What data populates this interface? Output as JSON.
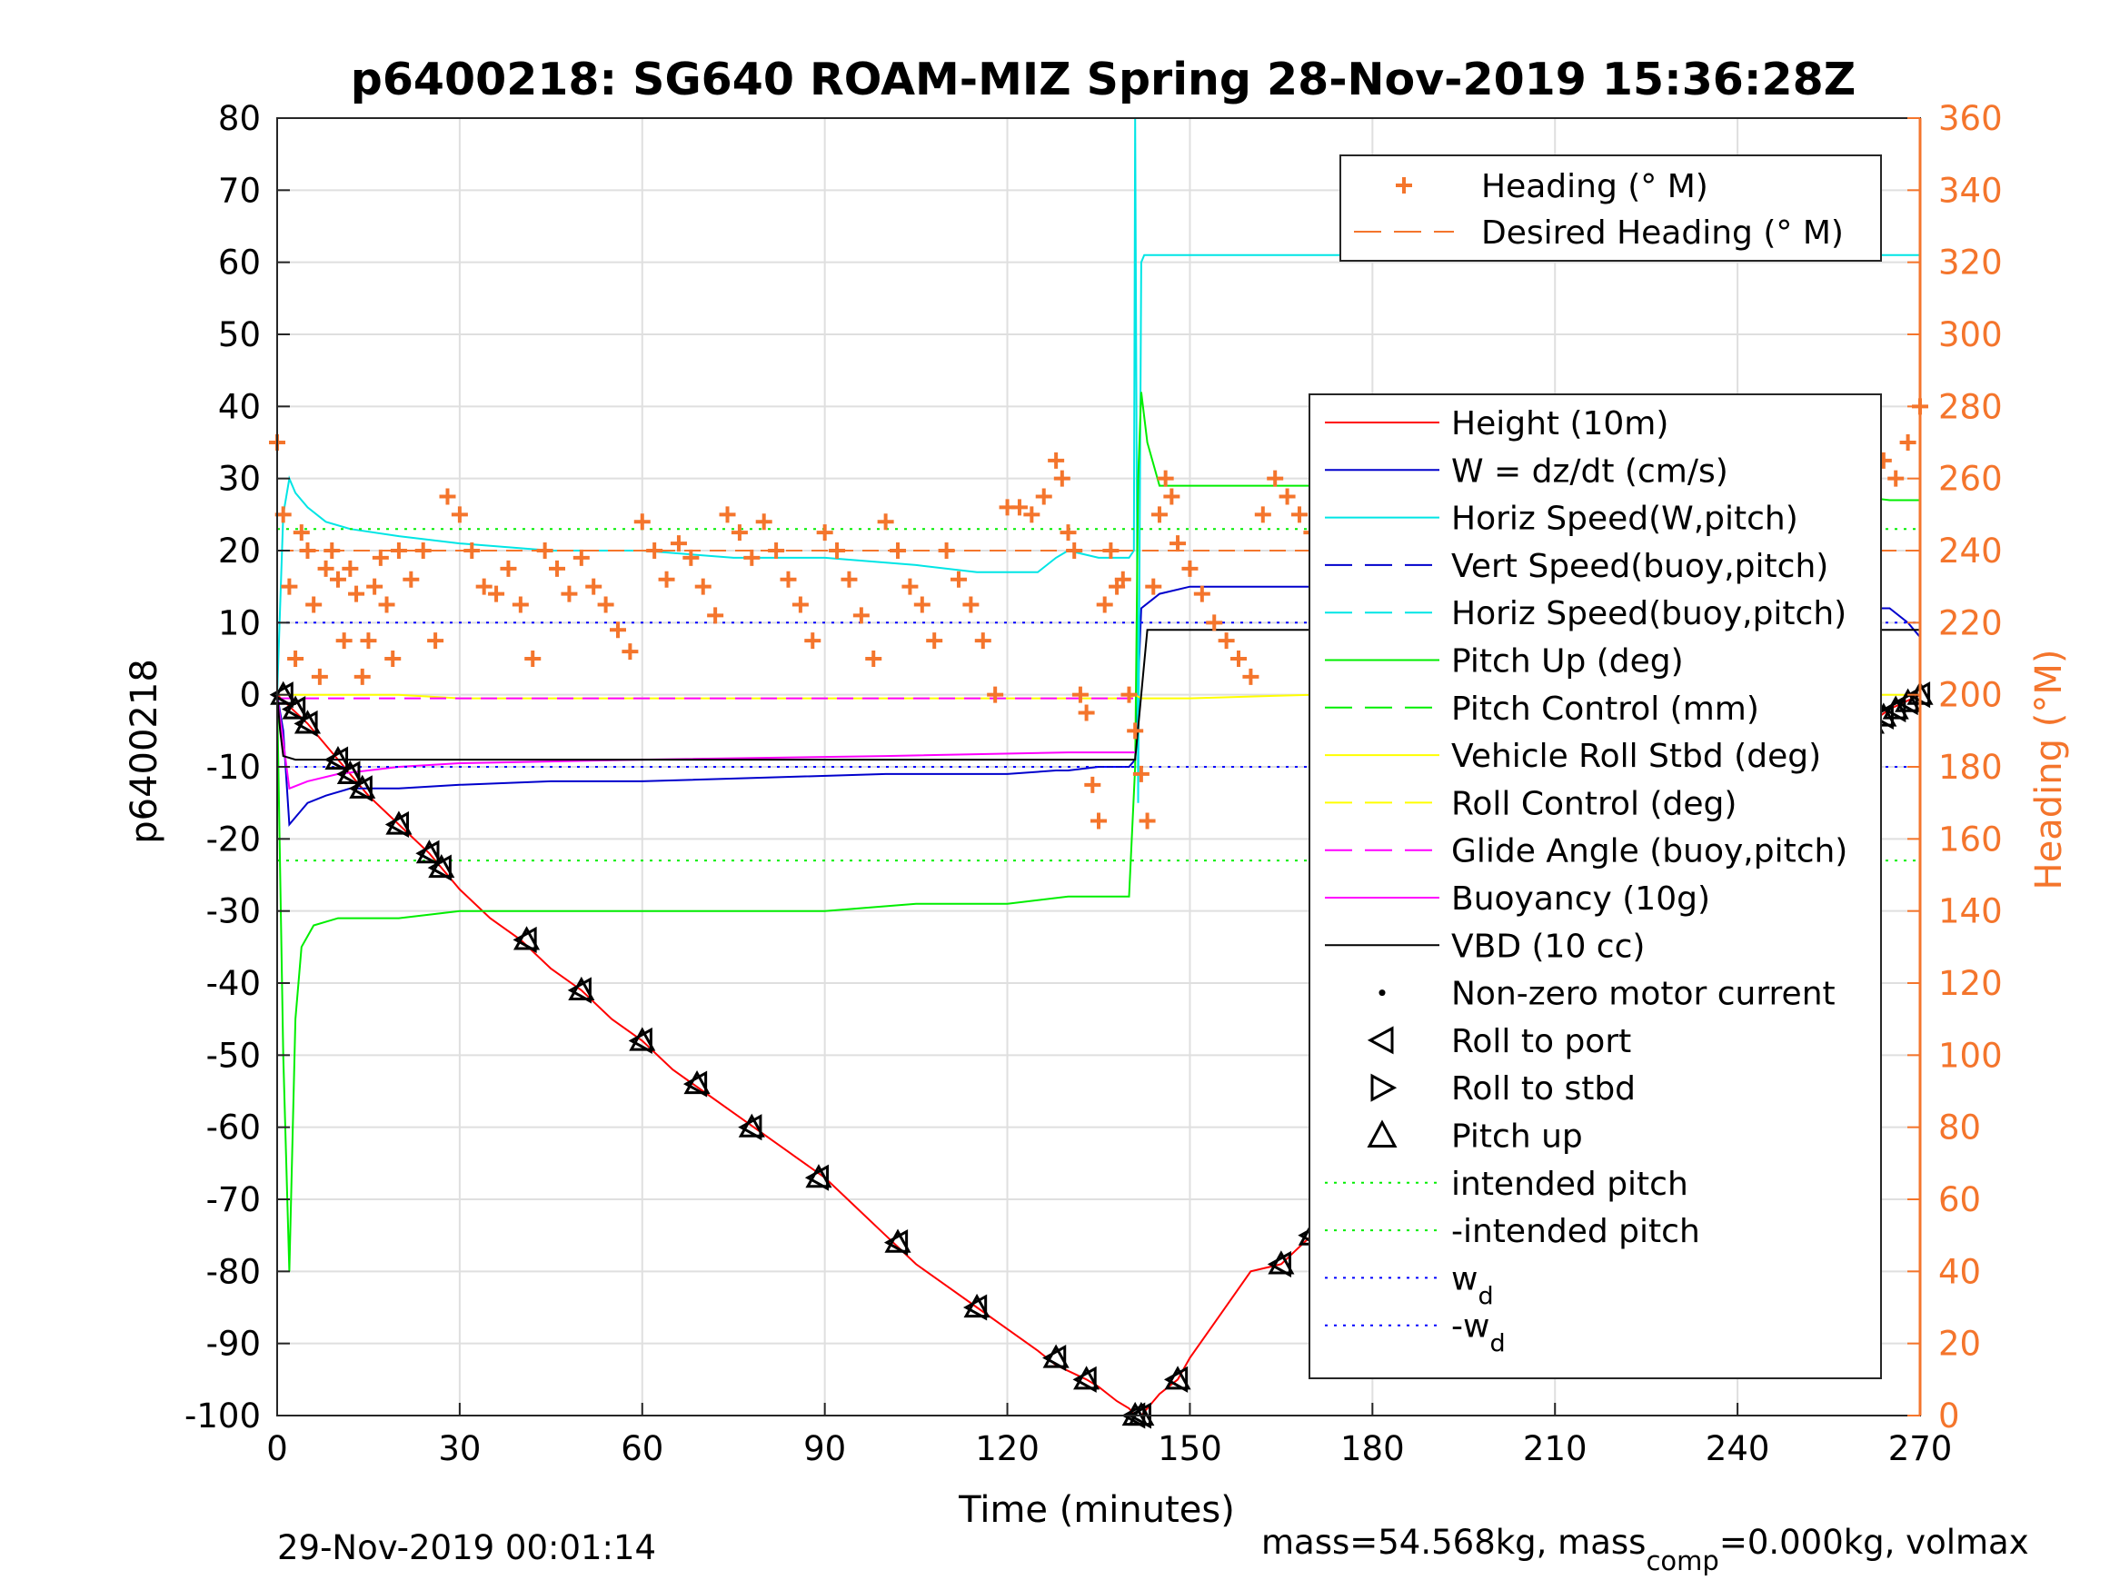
{
  "chart_data": {
    "type": "line",
    "title": "p6400218: SG640 ROAM-MIZ Spring 28-Nov-2019 15:36:28Z",
    "xlabel": "Time (minutes)",
    "ylabel": "p6400218",
    "y2label": "Heading (°M)",
    "xlim": [
      0,
      270
    ],
    "ylim": [
      -100,
      80
    ],
    "y2lim": [
      0,
      360
    ],
    "xticks": [
      "0",
      "30",
      "60",
      "90",
      "120",
      "150",
      "180",
      "210",
      "240",
      "270"
    ],
    "yticks": [
      "80",
      "70",
      "60",
      "50",
      "40",
      "30",
      "20",
      "10",
      "0",
      "-10",
      "-20",
      "-30",
      "-40",
      "-50",
      "-60",
      "-70",
      "-80",
      "-90",
      "-100"
    ],
    "y2ticks": [
      "360",
      "340",
      "320",
      "300",
      "280",
      "260",
      "240",
      "220",
      "200",
      "180",
      "160",
      "140",
      "120",
      "100",
      "80",
      "60",
      "40",
      "20",
      "0"
    ],
    "grid": true,
    "footer_left": "29-Nov-2019 00:01:14",
    "footer_right": {
      "pre": "mass=54.568kg, mass",
      "sub": "comp",
      "post": "=0.000kg, volmax"
    },
    "legend_heading": {
      "placement": "top-right",
      "entries": [
        {
          "label": "Heading (° M)",
          "color": "#f4752c",
          "style": "plus"
        },
        {
          "label": "Desired Heading (° M)",
          "color": "#f4752c",
          "style": "dashed"
        }
      ]
    },
    "legend_main": {
      "placement": "right",
      "entries": [
        {
          "label": "Height (10m)",
          "color": "#ff0000",
          "style": "solid"
        },
        {
          "label": "W = dz/dt (cm/s)",
          "color": "#0000cc",
          "style": "solid"
        },
        {
          "label": "Horiz Speed(W,pitch)",
          "color": "#00e5e5",
          "style": "solid"
        },
        {
          "label": "Vert Speed(buoy,pitch)",
          "color": "#0000cc",
          "style": "dashed"
        },
        {
          "label": "Horiz Speed(buoy,pitch)",
          "color": "#00e5e5",
          "style": "dashed"
        },
        {
          "label": "Pitch Up (deg)",
          "color": "#00ee00",
          "style": "solid"
        },
        {
          "label": "Pitch Control (mm)",
          "color": "#00ee00",
          "style": "dashed"
        },
        {
          "label": "Vehicle Roll Stbd (deg)",
          "color": "#ffff00",
          "style": "solid"
        },
        {
          "label": "Roll Control (deg)",
          "color": "#ffff00",
          "style": "dashed"
        },
        {
          "label": "Glide Angle (buoy,pitch)",
          "color": "#ff00ff",
          "style": "dashed"
        },
        {
          "label": "Buoyancy (10g)",
          "color": "#ff00ff",
          "style": "solid"
        },
        {
          "label": "VBD (10 cc)",
          "color": "#000000",
          "style": "solid"
        },
        {
          "label": "Non-zero motor current",
          "color": "#000000",
          "style": "dot"
        },
        {
          "label": "Roll to port",
          "color": "#000000",
          "style": "tri-left"
        },
        {
          "label": "Roll to stbd",
          "color": "#000000",
          "style": "tri-right"
        },
        {
          "label": "Pitch up",
          "color": "#000000",
          "style": "tri-up"
        },
        {
          "label": "intended pitch",
          "color": "#00ee00",
          "style": "dotted"
        },
        {
          "label": "-intended pitch",
          "color": "#00ee00",
          "style": "dotted"
        },
        {
          "label": "w",
          "sub": "d",
          "color": "#0000ff",
          "style": "dotted"
        },
        {
          "label": "-w",
          "sub": "d",
          "color": "#0000ff",
          "style": "dotted"
        }
      ]
    },
    "series": [
      {
        "name": "Height (10m)",
        "color": "#ff0000",
        "x": [
          0,
          5,
          10,
          15,
          20,
          25,
          27,
          30,
          35,
          40,
          45,
          50,
          55,
          60,
          65,
          70,
          75,
          80,
          85,
          90,
          95,
          100,
          105,
          110,
          115,
          120,
          125,
          128,
          133,
          135,
          138,
          140,
          141,
          142,
          143,
          145,
          148,
          150,
          155,
          160,
          165,
          170,
          175,
          180,
          185,
          190,
          195,
          200,
          205,
          210,
          215,
          220,
          225,
          230,
          235,
          240,
          245,
          250,
          255,
          260,
          265,
          270
        ],
        "y": [
          0,
          -4,
          -9,
          -14,
          -18,
          -22,
          -24,
          -27,
          -31,
          -34,
          -38,
          -41,
          -45,
          -48,
          -52,
          -55,
          -58,
          -61,
          -64,
          -67,
          -71,
          -75,
          -79,
          -82,
          -85,
          -88,
          -91,
          -93,
          -95,
          -96,
          -98,
          -99,
          -100,
          -100,
          -99,
          -97,
          -95,
          -92,
          -86,
          -80,
          -79,
          -75,
          -70,
          -66,
          -62,
          -58,
          -54,
          -50,
          -46,
          -41,
          -37,
          -33,
          -29,
          -25,
          -22,
          -18,
          -15,
          -11,
          -8,
          -5,
          -2,
          0
        ]
      },
      {
        "name": "W = dz/dt (cm/s)",
        "color": "#0000cc",
        "x": [
          0,
          1,
          2,
          3,
          4,
          5,
          8,
          12,
          20,
          30,
          45,
          60,
          80,
          100,
          115,
          120,
          128,
          130,
          135,
          140,
          141,
          142,
          145,
          150,
          165,
          180,
          195,
          210,
          225,
          240,
          255,
          262,
          265,
          268,
          270
        ],
        "y": [
          0,
          -5,
          -18,
          -17,
          -16,
          -15,
          -14,
          -13,
          -13,
          -12.5,
          -12,
          -12,
          -11.5,
          -11,
          -11,
          -11,
          -10.5,
          -10.5,
          -10,
          -10,
          -9,
          12,
          14,
          15,
          15,
          15,
          14,
          13,
          12,
          12,
          11,
          12,
          12,
          10,
          8
        ]
      },
      {
        "name": "Horiz Speed(W,pitch)",
        "color": "#00e5e5",
        "x": [
          0,
          1,
          2,
          3,
          5,
          8,
          12,
          20,
          30,
          45,
          60,
          75,
          90,
          105,
          115,
          125,
          128,
          130,
          135,
          140,
          140.8,
          141,
          141.5,
          142,
          142.5,
          270
        ],
        "y": [
          0,
          25,
          30,
          28,
          26,
          24,
          23,
          22,
          21,
          20,
          20,
          19,
          19,
          18,
          17,
          17,
          19,
          20,
          19,
          19,
          20,
          80,
          -15,
          60,
          61,
          61
        ]
      },
      {
        "name": "Pitch Up (deg)",
        "color": "#00ee00",
        "x": [
          0,
          1,
          2,
          3,
          4,
          6,
          10,
          20,
          30,
          45,
          60,
          75,
          90,
          105,
          120,
          130,
          140,
          141,
          141.5,
          142,
          143,
          145,
          150,
          165,
          180,
          195,
          210,
          225,
          240,
          255,
          265,
          270
        ],
        "y": [
          0,
          -50,
          -80,
          -45,
          -35,
          -32,
          -31,
          -31,
          -30,
          -30,
          -30,
          -30,
          -30,
          -29,
          -29,
          -28,
          -28,
          -10,
          30,
          42,
          35,
          29,
          29,
          29,
          29,
          29,
          29,
          28,
          28,
          28,
          27,
          27
        ]
      },
      {
        "name": "Vehicle Roll Stbd (deg)",
        "color": "#ffff00",
        "x": [
          0,
          10,
          20,
          30,
          50,
          70,
          90,
          110,
          130,
          140,
          141,
          142,
          150,
          170,
          190,
          210,
          230,
          250,
          270
        ],
        "y": [
          0,
          0,
          0,
          -0.5,
          -0.5,
          -0.5,
          -0.5,
          -0.5,
          -0.5,
          -0.5,
          0,
          -0.5,
          -0.5,
          0,
          0,
          0,
          0,
          0,
          0
        ]
      },
      {
        "name": "Buoyancy (10g)",
        "color": "#ff00ff",
        "x": [
          0,
          2,
          5,
          10,
          20,
          30,
          60,
          100,
          130,
          141
        ],
        "y": [
          0,
          -13,
          -12,
          -11,
          -10,
          -9.5,
          -9,
          -8.5,
          -8,
          -8
        ]
      },
      {
        "name": "Glide Angle (buoy,pitch)",
        "color": "#ff00ff",
        "x": [
          0,
          141
        ],
        "y": [
          -0.5,
          -0.5
        ]
      },
      {
        "name": "VBD (10 cc)",
        "color": "#000000",
        "x": [
          0,
          0.5,
          1,
          3,
          141,
          142,
          143,
          270
        ],
        "y": [
          0,
          -5,
          -8.5,
          -9,
          -9,
          0,
          9,
          9
        ]
      },
      {
        "name": "intended pitch",
        "color": "#00ee00",
        "x": [
          0,
          270
        ],
        "y": [
          23,
          23
        ]
      },
      {
        "name": "-intended pitch",
        "color": "#00ee00",
        "x": [
          0,
          270
        ],
        "y": [
          -23,
          -23
        ]
      },
      {
        "name": "w_d",
        "color": "#0000ff",
        "x": [
          0,
          270
        ],
        "y": [
          10,
          10
        ]
      },
      {
        "name": "-w_d",
        "color": "#0000ff",
        "x": [
          0,
          270
        ],
        "y": [
          -10,
          -10
        ]
      },
      {
        "name": "Heading (° M)",
        "color": "#f4752c",
        "axis": "right",
        "x": [
          0,
          1,
          2,
          3,
          4,
          5,
          6,
          7,
          8,
          9,
          10,
          11,
          12,
          13,
          14,
          15,
          16,
          17,
          18,
          19,
          20,
          22,
          24,
          26,
          28,
          30,
          32,
          34,
          36,
          38,
          40,
          42,
          44,
          46,
          48,
          50,
          52,
          54,
          56,
          58,
          60,
          62,
          64,
          66,
          68,
          70,
          72,
          74,
          76,
          78,
          80,
          82,
          84,
          86,
          88,
          90,
          92,
          94,
          96,
          98,
          100,
          102,
          104,
          106,
          108,
          110,
          112,
          114,
          116,
          118,
          120,
          122,
          124,
          126,
          128,
          129,
          130,
          131,
          132,
          133,
          134,
          135,
          136,
          137,
          138,
          139,
          140,
          141,
          142,
          143,
          144,
          145,
          146,
          147,
          148,
          150,
          152,
          154,
          156,
          158,
          160,
          162,
          164,
          166,
          168,
          170,
          172,
          174,
          176,
          178,
          180,
          182,
          184,
          186,
          188,
          190,
          192,
          194,
          196,
          198,
          200,
          202,
          204,
          206,
          208,
          210,
          212,
          214,
          216,
          218,
          220,
          222,
          224,
          226,
          228,
          230,
          232,
          234,
          236,
          238,
          240,
          242,
          244,
          246,
          248,
          250,
          252,
          254,
          256,
          258,
          260,
          262,
          264,
          266,
          268,
          270
        ],
        "y": [
          270,
          250,
          230,
          210,
          245,
          240,
          225,
          205,
          235,
          240,
          232,
          215,
          235,
          228,
          205,
          215,
          230,
          238,
          225,
          210,
          240,
          232,
          240,
          215,
          255,
          250,
          240,
          230,
          228,
          235,
          225,
          210,
          240,
          235,
          228,
          238,
          230,
          225,
          218,
          212,
          248,
          240,
          232,
          242,
          238,
          230,
          222,
          250,
          245,
          238,
          248,
          240,
          232,
          225,
          215,
          245,
          240,
          232,
          222,
          210,
          248,
          240,
          230,
          225,
          215,
          240,
          232,
          225,
          215,
          200,
          252,
          252,
          250,
          255,
          265,
          260,
          245,
          240,
          200,
          195,
          175,
          165,
          225,
          240,
          230,
          232,
          200,
          190,
          178,
          165,
          230,
          250,
          260,
          255,
          242,
          235,
          228,
          220,
          215,
          210,
          205,
          250,
          260,
          255,
          250,
          245,
          260,
          245,
          240,
          230,
          200,
          180,
          165,
          150,
          200,
          245,
          250,
          240,
          225,
          215,
          210,
          200,
          230,
          220,
          240,
          250,
          215,
          235,
          260,
          280,
          270,
          255,
          230,
          240,
          265,
          255,
          245,
          240,
          232,
          260,
          248,
          240,
          250,
          258,
          262,
          245,
          235,
          255,
          240,
          220,
          270,
          255,
          265,
          260,
          270,
          280
        ]
      },
      {
        "name": "Desired Heading (° M)",
        "color": "#f4752c",
        "axis": "right",
        "x": [
          0,
          270
        ],
        "y": [
          240,
          240
        ]
      }
    ],
    "markers": {
      "x": [
        1,
        3,
        5,
        10,
        12,
        14,
        20,
        25,
        27,
        41,
        50,
        60,
        69,
        78,
        89,
        102,
        115,
        128,
        133,
        141,
        142,
        148,
        165,
        170,
        175,
        188,
        193,
        195,
        197,
        199,
        201,
        210,
        212,
        214,
        216,
        218,
        220,
        222,
        224,
        226,
        228,
        230,
        232,
        234,
        236,
        238,
        240,
        242,
        244,
        246,
        248,
        250,
        252,
        254,
        256,
        258,
        260,
        262,
        264,
        266,
        268,
        270
      ],
      "y": [
        0,
        -2,
        -4,
        -9,
        -11,
        -13,
        -18,
        -22,
        -24,
        -34,
        -41,
        -48,
        -54,
        -60,
        -67,
        -76,
        -85,
        -92,
        -95,
        -100,
        -100,
        -95,
        -79,
        -75,
        -70,
        -58,
        -55,
        -53,
        -52,
        -50,
        -48,
        -41,
        -40,
        -38,
        -37,
        -35,
        -33,
        -32,
        -30,
        -28,
        -27,
        -25,
        -24,
        -22,
        -21,
        -20,
        -18,
        -17,
        -16,
        -14,
        -13,
        -11,
        -10,
        -9,
        -8,
        -6,
        -5,
        -4,
        -3,
        -2,
        -1,
        0
      ]
    }
  }
}
